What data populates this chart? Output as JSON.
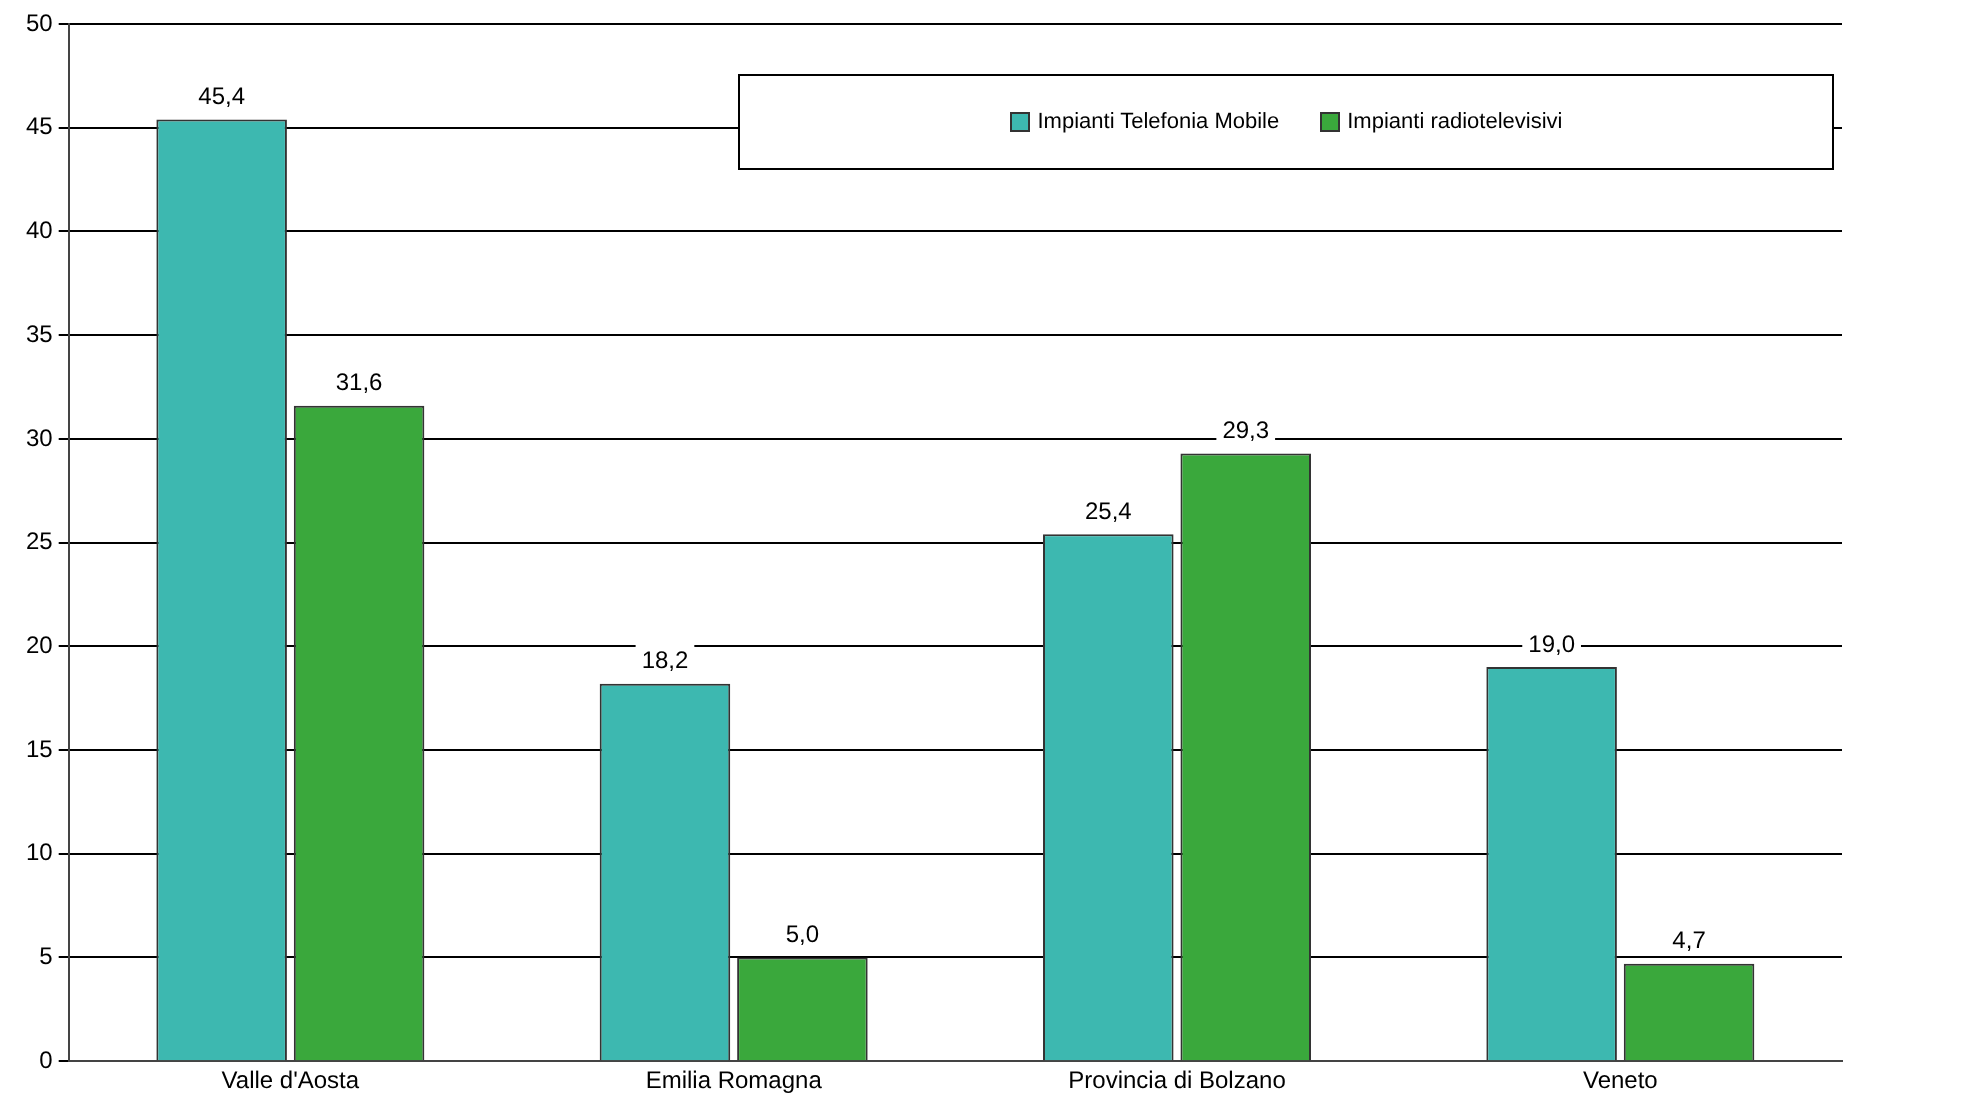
{
  "chart_data": {
    "type": "bar",
    "categories": [
      "Valle d'Aosta",
      "Emilia Romagna",
      "Provincia di Bolzano",
      "Veneto"
    ],
    "series": [
      {
        "name": "Impianti Telefonia Mobile",
        "color": "#3db8b0",
        "values": [
          45.4,
          18.2,
          25.4,
          19.0
        ],
        "value_labels": [
          "45,4",
          "18,2",
          "25,4",
          "19,0"
        ]
      },
      {
        "name": "Impianti radiotelevisivi",
        "color": "#3aa83c",
        "values": [
          31.6,
          5.0,
          29.3,
          4.7
        ],
        "value_labels": [
          "31,6",
          "5,0",
          "29,3",
          "4,7"
        ]
      }
    ],
    "ylim": [
      0,
      50
    ],
    "yticks": [
      0,
      5,
      10,
      15,
      20,
      25,
      30,
      35,
      40,
      45,
      50
    ],
    "grid": "y",
    "legend": "top right"
  }
}
